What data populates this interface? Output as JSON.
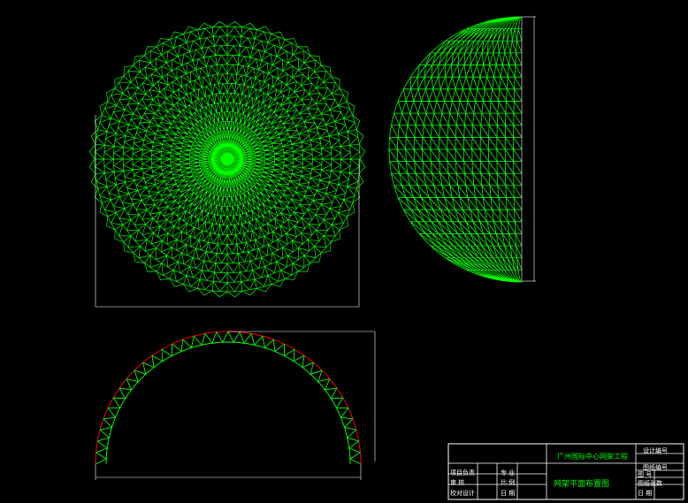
{
  "title_block": {
    "project": "广州国际中心网架工程",
    "drawing_title": "网架平面布置图",
    "left_labels": [
      "项目负责",
      "审 核",
      "校对设计"
    ],
    "mid_labels": [
      "专 业",
      "比 例",
      "日 期"
    ],
    "right_labels": [
      "设计编号",
      "图纸编号",
      "图 号",
      "图纸张数",
      "日 期"
    ]
  },
  "colors": {
    "structure": "#00ff00",
    "chord": "#ff0000",
    "lines": "#ffffff",
    "background": "#000000"
  }
}
